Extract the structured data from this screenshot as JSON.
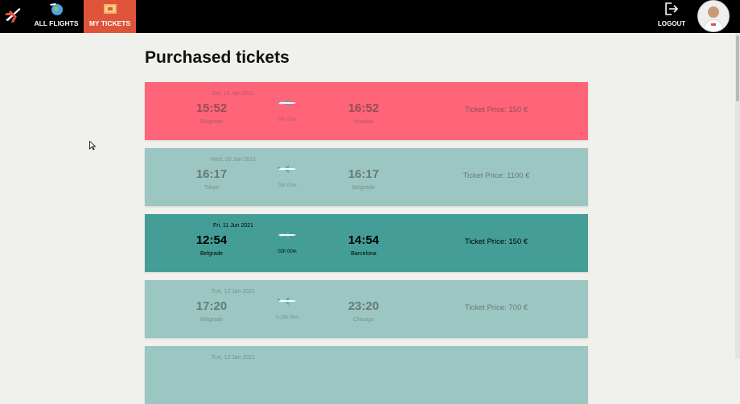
{
  "nav": {
    "all_flights": "ALL FLIGHTS",
    "my_tickets": "MY TICKETS",
    "logout": "LOGOUT",
    "active_accent": "#e0533b"
  },
  "page": {
    "title": "Purchased tickets"
  },
  "tickets": [
    {
      "date": "Sat, 16 Jan 2021",
      "dep_time": "15:52",
      "dep_city": "Belgrade",
      "duration": "00h 00m",
      "arr_time": "16:52",
      "arr_city": "Istanbul",
      "price": "Ticket Price: 150 €",
      "bg": "#ff6478",
      "state": "faded"
    },
    {
      "date": "Wed, 20 Jan 2021",
      "dep_time": "16:17",
      "dep_city": "Tokyo",
      "duration": "00h 00m",
      "arr_time": "16:17",
      "arr_city": "Belgrade",
      "price": "Ticket Price: 1100 €",
      "bg": "#9cc6c1",
      "state": "faded"
    },
    {
      "date": "Fri, 11 Jun 2021",
      "dep_time": "12:54",
      "dep_city": "Belgrade",
      "duration": "02h 00m",
      "arr_time": "14:54",
      "arr_city": "Barcelona",
      "price": "Ticket Price: 150 €",
      "bg": "#449e97",
      "state": "active"
    },
    {
      "date": "Tue, 12 Jan 2021",
      "dep_time": "17:20",
      "dep_city": "Belgrade",
      "duration": "0-18h 00m",
      "arr_time": "23:20",
      "arr_city": "Chicago",
      "price": "Ticket Price: 700 €",
      "bg": "#9cc6c1",
      "state": "faded"
    },
    {
      "date": "Tue, 12 Jan 2021",
      "bg": "#9cc6c1",
      "state": "faded"
    }
  ]
}
